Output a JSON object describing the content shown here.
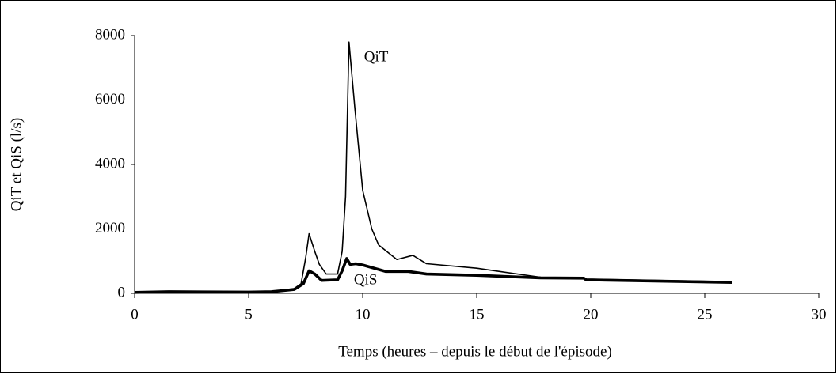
{
  "chart_data": {
    "type": "line",
    "xlabel": "Temps (heures – depuis le début de l'épisode)",
    "ylabel": "QiT et QiS (l/s)",
    "xlim": [
      0,
      30
    ],
    "xticks": [
      0,
      5,
      10,
      15,
      20,
      25,
      30
    ],
    "ylim": [
      0,
      8000
    ],
    "yticks": [
      0,
      2000,
      4000,
      6000,
      8000
    ],
    "series": [
      {
        "name": "QiT",
        "color": "#000000",
        "x": [
          0,
          1.5,
          5,
          6,
          7,
          7.3,
          7.5,
          7.65,
          7.9,
          8.1,
          8.4,
          8.9,
          9.1,
          9.25,
          9.4,
          9.65,
          10.0,
          10.4,
          10.7,
          11.5,
          12.2,
          12.8,
          15,
          17.8,
          19.7,
          19.8,
          26.2
        ],
        "values": [
          30,
          50,
          40,
          50,
          150,
          300,
          1100,
          1850,
          1300,
          900,
          600,
          600,
          1300,
          3000,
          7800,
          5800,
          3200,
          2000,
          1500,
          1050,
          1180,
          920,
          780,
          500,
          470,
          440,
          360
        ]
      },
      {
        "name": "QiS",
        "color": "#000000",
        "x": [
          0,
          1.5,
          5,
          6,
          7,
          7.4,
          7.65,
          7.9,
          8.2,
          8.9,
          9.1,
          9.3,
          9.45,
          9.7,
          10.0,
          11.0,
          12.0,
          12.8,
          15,
          17.8,
          19.7,
          19.8,
          26.2
        ],
        "values": [
          30,
          50,
          40,
          50,
          120,
          300,
          700,
          600,
          400,
          420,
          700,
          1080,
          900,
          920,
          880,
          680,
          680,
          600,
          560,
          480,
          470,
          420,
          340
        ]
      }
    ]
  }
}
